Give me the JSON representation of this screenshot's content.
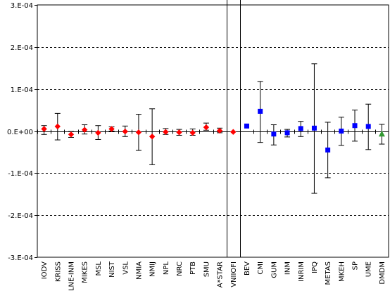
{
  "chart_data": {
    "type": "scatter",
    "title": "",
    "xlabel": "",
    "ylabel": "",
    "ylim": [
      -0.0003,
      0.0003
    ],
    "yticks": [
      {
        "value": 0.0003,
        "label": "3.E-04"
      },
      {
        "value": 0.0002,
        "label": "2.E-04"
      },
      {
        "value": 0.0001,
        "label": "1.E-04"
      },
      {
        "value": 0.0,
        "label": "0.E+00"
      },
      {
        "value": -0.0001,
        "label": "-1.E-04"
      },
      {
        "value": -0.0002,
        "label": "-2.E-04"
      },
      {
        "value": -0.0003,
        "label": "-3.E-04"
      }
    ],
    "grid": "horizontal dashed",
    "legend": "none",
    "separators_after": [
      "A*STAR",
      "VNIIOFI"
    ],
    "colors": {
      "diamond": "#ff0000",
      "square": "#0000ff",
      "triangle": "#339933"
    },
    "points": [
      {
        "x": "IODV",
        "y": 5e-06,
        "err_lo": 1.3e-05,
        "err_hi": 8e-06,
        "marker": "diamond"
      },
      {
        "x": "KRISS",
        "y": 1.1e-05,
        "err_lo": 3.2e-05,
        "err_hi": 3.1e-05,
        "marker": "diamond"
      },
      {
        "x": "LNE-INM",
        "y": -8e-06,
        "err_lo": 7e-06,
        "err_hi": 7e-06,
        "marker": "diamond"
      },
      {
        "x": "MIKES",
        "y": 3e-06,
        "err_lo": 1e-05,
        "err_hi": 1.2e-05,
        "marker": "diamond"
      },
      {
        "x": "MSL",
        "y": -4e-06,
        "err_lo": 1.6e-05,
        "err_hi": 1.7e-05,
        "marker": "diamond"
      },
      {
        "x": "NIST",
        "y": 5e-06,
        "err_lo": 5e-06,
        "err_hi": 5e-06,
        "marker": "diamond"
      },
      {
        "x": "VSL",
        "y": -1e-06,
        "err_lo": 1.2e-05,
        "err_hi": 1.3e-05,
        "marker": "diamond"
      },
      {
        "x": "NMIA",
        "y": -3e-06,
        "err_lo": 4.3e-05,
        "err_hi": 4.3e-05,
        "marker": "diamond"
      },
      {
        "x": "NMIJ",
        "y": -1.3e-05,
        "err_lo": 6.7e-05,
        "err_hi": 6.6e-05,
        "marker": "diamond"
      },
      {
        "x": "NPL",
        "y": -2e-06,
        "err_lo": 6e-06,
        "err_hi": 8e-06,
        "marker": "diamond"
      },
      {
        "x": "NRC",
        "y": -3e-06,
        "err_lo": 7e-06,
        "err_hi": 7e-06,
        "marker": "diamond"
      },
      {
        "x": "PTB",
        "y": -4e-06,
        "err_lo": 6e-06,
        "err_hi": 9e-06,
        "marker": "diamond"
      },
      {
        "x": "SMU",
        "y": 9e-06,
        "err_lo": 7e-06,
        "err_hi": 1e-05,
        "marker": "diamond"
      },
      {
        "x": "A*STAR",
        "y": 1e-06,
        "err_lo": 5e-06,
        "err_hi": 6e-06,
        "marker": "diamond"
      },
      {
        "x": "VNIIOFI",
        "y": -2e-06,
        "err_lo": 0.0,
        "err_hi": 0.0,
        "marker": "diamond"
      },
      {
        "x": "BEV",
        "y": 1.2e-05,
        "err_lo": 0.0,
        "err_hi": 0.0,
        "marker": "square"
      },
      {
        "x": "CMI",
        "y": 4.7e-05,
        "err_lo": 7.4e-05,
        "err_hi": 7.1e-05,
        "marker": "square"
      },
      {
        "x": "GUM",
        "y": -7e-06,
        "err_lo": 2.6e-05,
        "err_hi": 2.2e-05,
        "marker": "square"
      },
      {
        "x": "INM",
        "y": -4e-06,
        "err_lo": 1e-05,
        "err_hi": 8e-06,
        "marker": "square"
      },
      {
        "x": "INRIM",
        "y": 6e-06,
        "err_lo": 1.9e-05,
        "err_hi": 1.7e-05,
        "marker": "square"
      },
      {
        "x": "IPQ",
        "y": 7e-06,
        "err_lo": 0.000155,
        "err_hi": 0.000153,
        "marker": "square"
      },
      {
        "x": "METAS",
        "y": -4.5e-05,
        "err_lo": 6.6e-05,
        "err_hi": 6.6e-05,
        "marker": "square"
      },
      {
        "x": "MKEH",
        "y": 0.0,
        "err_lo": 3.4e-05,
        "err_hi": 3.3e-05,
        "marker": "square"
      },
      {
        "x": "SP",
        "y": 1.3e-05,
        "err_lo": 3.7e-05,
        "err_hi": 3.7e-05,
        "marker": "square"
      },
      {
        "x": "UME",
        "y": 1.1e-05,
        "err_lo": 5.5e-05,
        "err_hi": 5.3e-05,
        "marker": "square"
      },
      {
        "x": "DMDM",
        "y": -7e-06,
        "err_lo": 2.4e-05,
        "err_hi": 2.3e-05,
        "marker": "triangle"
      }
    ]
  }
}
